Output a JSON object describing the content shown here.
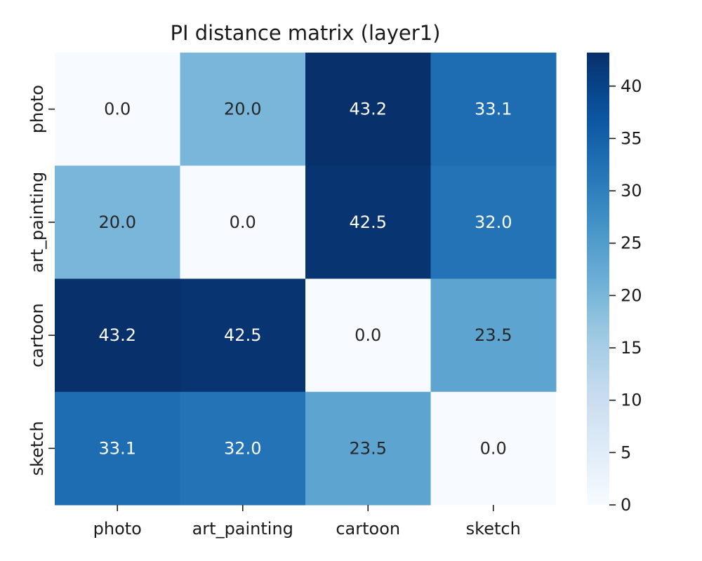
{
  "chart_data": {
    "type": "heatmap",
    "title": "PI distance matrix (layer1)",
    "xlabel": "",
    "ylabel": "",
    "x_categories": [
      "photo",
      "art_painting",
      "cartoon",
      "sketch"
    ],
    "y_categories": [
      "photo",
      "art_painting",
      "cartoon",
      "sketch"
    ],
    "values": [
      [
        0.0,
        20.0,
        43.2,
        33.1
      ],
      [
        20.0,
        0.0,
        42.5,
        32.0
      ],
      [
        43.2,
        42.5,
        0.0,
        23.5
      ],
      [
        33.1,
        32.0,
        23.5,
        0.0
      ]
    ],
    "annotations": [
      [
        "0.0",
        "20.0",
        "43.2",
        "33.1"
      ],
      [
        "20.0",
        "0.0",
        "42.5",
        "32.0"
      ],
      [
        "43.2",
        "42.5",
        "0.0",
        "23.5"
      ],
      [
        "33.1",
        "32.0",
        "23.5",
        "0.0"
      ]
    ],
    "colormap": "Blues",
    "vmin": 0,
    "vmax": 43.2,
    "colorbar": {
      "ticks": [
        0,
        5,
        10,
        15,
        20,
        25,
        30,
        35,
        40
      ],
      "tick_labels": [
        "0",
        "5",
        "10",
        "15",
        "20",
        "25",
        "30",
        "35",
        "40"
      ]
    },
    "grid": false
  }
}
